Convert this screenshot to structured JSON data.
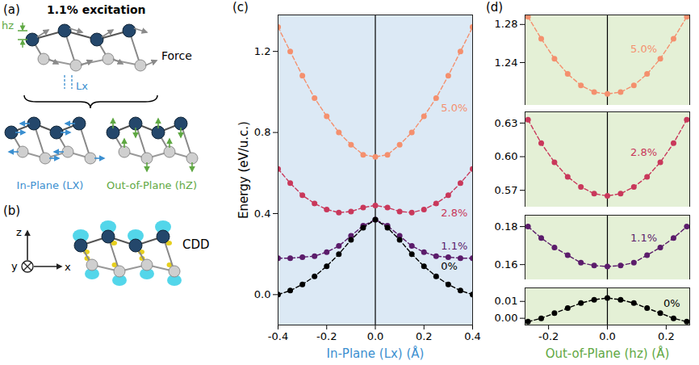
{
  "diagram": {
    "a": {
      "label": "(a)",
      "title": "1.1% excitation",
      "hz": "hz",
      "lx": "Lx",
      "force": "Force",
      "in_plane": "In-Plane (LX)",
      "out_of_plane": "Out-of-Plane (hZ)"
    },
    "b": {
      "label": "(b)",
      "cdd": "CDD",
      "axes": {
        "z": "z",
        "y": "y",
        "x": "x"
      }
    }
  },
  "chart_data": [
    {
      "panel": "(c)",
      "type": "line",
      "marker": "circle",
      "line_style": "dashed",
      "grid": false,
      "xlabel": "In-Plane (Lx) (Å)",
      "ylabel": "Energy (eV/u.c.)",
      "xlim": [
        -0.4,
        0.4
      ],
      "xticks": [
        -0.4,
        -0.2,
        {
          "value": 0,
          "label": "0.0"
        },
        0.2,
        0.4
      ],
      "ylim": [
        -0.15,
        1.38
      ],
      "yticks": [
        {
          "value": 0,
          "label": "0.0"
        },
        0.4,
        0.8,
        1.2
      ],
      "x": [
        -0.4,
        -0.35,
        -0.3,
        -0.25,
        -0.2,
        -0.15,
        -0.1,
        -0.05,
        0,
        0.05,
        0.1,
        0.15,
        0.2,
        0.25,
        0.3,
        0.35,
        0.4
      ],
      "series": [
        {
          "name": "5.0%",
          "color": "#f4906e",
          "values": [
            1.32,
            1.2,
            1.08,
            0.97,
            0.88,
            0.8,
            0.74,
            0.69,
            0.68,
            0.69,
            0.74,
            0.8,
            0.88,
            0.97,
            1.08,
            1.2,
            1.32
          ]
        },
        {
          "name": "2.8%",
          "color": "#c9385b",
          "values": [
            0.62,
            0.55,
            0.49,
            0.45,
            0.42,
            0.405,
            0.41,
            0.43,
            0.44,
            0.43,
            0.41,
            0.405,
            0.42,
            0.45,
            0.49,
            0.55,
            0.62
          ]
        },
        {
          "name": "1.1%",
          "color": "#5b1c6b",
          "values": [
            0.18,
            0.18,
            0.185,
            0.19,
            0.21,
            0.24,
            0.29,
            0.34,
            0.37,
            0.34,
            0.29,
            0.24,
            0.21,
            0.19,
            0.185,
            0.18,
            0.18
          ]
        },
        {
          "name": "0%",
          "color": "#000000",
          "values": [
            0.0,
            0.02,
            0.05,
            0.09,
            0.14,
            0.2,
            0.27,
            0.33,
            0.37,
            0.33,
            0.27,
            0.2,
            0.14,
            0.09,
            0.05,
            0.02,
            0.0
          ]
        }
      ]
    },
    {
      "panel": "(d)",
      "type": "line",
      "marker": "circle",
      "line_style": "dashed",
      "grid": false,
      "xlabel": "Out-of-Plane (hz) (Å)",
      "xlim": [
        -0.28,
        0.28
      ],
      "xticks": [
        -0.2,
        {
          "value": 0,
          "label": "0.0"
        },
        0.2
      ],
      "x": [
        -0.27,
        -0.225,
        -0.18,
        -0.135,
        -0.09,
        -0.045,
        0,
        0.045,
        0.09,
        0.135,
        0.18,
        0.225,
        0.27
      ],
      "series": [
        {
          "name": "5.0%",
          "color": "#f4906e",
          "ylim": [
            1.195,
            1.29
          ],
          "yticks": [
            1.24,
            1.28
          ],
          "values": [
            1.288,
            1.265,
            1.244,
            1.228,
            1.216,
            1.209,
            1.207,
            1.209,
            1.216,
            1.228,
            1.244,
            1.265,
            1.288
          ]
        },
        {
          "name": "2.8%",
          "color": "#c9385b",
          "ylim": [
            0.555,
            0.64
          ],
          "yticks": [
            0.57,
            {
              "value": 0.6,
              "label": "0.60"
            },
            0.63
          ],
          "values": [
            0.633,
            0.612,
            0.595,
            0.582,
            0.573,
            0.567,
            0.565,
            0.567,
            0.573,
            0.582,
            0.595,
            0.612,
            0.633
          ]
        },
        {
          "name": "1.1%",
          "color": "#5b1c6b",
          "ylim": [
            0.152,
            0.186
          ],
          "yticks": [
            0.16,
            0.18
          ],
          "values": [
            0.18,
            0.174,
            0.169,
            0.165,
            0.161,
            0.1595,
            0.159,
            0.1595,
            0.161,
            0.165,
            0.169,
            0.174,
            0.18
          ]
        },
        {
          "name": "0%",
          "color": "#000000",
          "ylim": [
            -0.004,
            0.018
          ],
          "yticks": [
            {
              "value": 0,
              "label": "0.00"
            },
            0.01
          ],
          "values": [
            -0.002,
            0.0,
            0.003,
            0.006,
            0.009,
            0.011,
            0.012,
            0.011,
            0.009,
            0.006,
            0.003,
            0.0,
            -0.002
          ]
        }
      ]
    }
  ]
}
